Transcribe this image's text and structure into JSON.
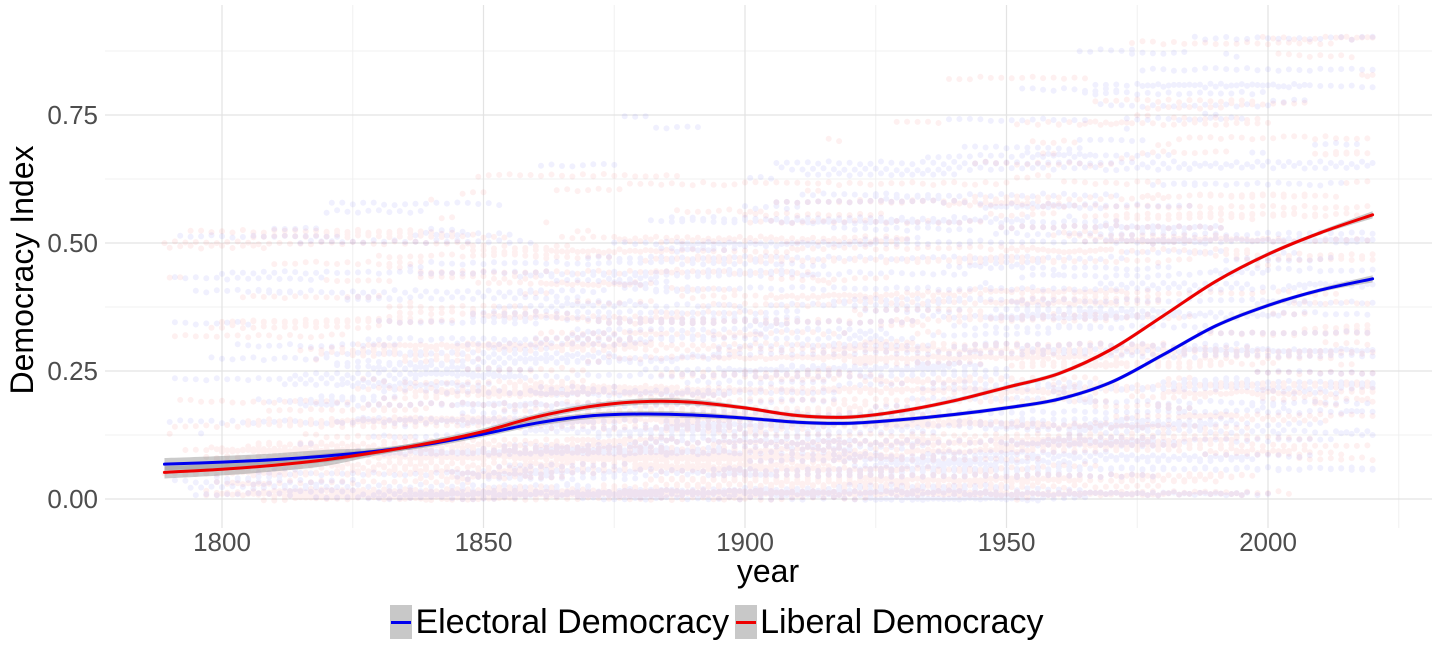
{
  "chart_data": {
    "type": "line",
    "xlabel": "year",
    "ylabel": "Democracy Index",
    "xlim": [
      1780,
      2033
    ],
    "ylim": [
      -0.0008,
      0.9
    ],
    "x_ticks": [
      1800,
      1850,
      1900,
      1950,
      2000
    ],
    "x_tick_labels": [
      "1800",
      "1850",
      "1900",
      "1950",
      "2000"
    ],
    "y_ticks": [
      0.0,
      0.25,
      0.5,
      0.75
    ],
    "y_tick_labels": [
      "0.00",
      "0.25",
      "0.50",
      "0.75"
    ],
    "grid": true,
    "legend_position": "bottom",
    "background_points": "semi-transparent country-year observations for both indices, 1789–2020",
    "series": [
      {
        "name": "Electoral Democracy",
        "color": "#0000ee",
        "x": [
          1789,
          1800,
          1810,
          1820,
          1830,
          1840,
          1850,
          1860,
          1870,
          1880,
          1890,
          1900,
          1910,
          1920,
          1930,
          1940,
          1950,
          1960,
          1970,
          1980,
          1990,
          2000,
          2010,
          2020
        ],
        "y": [
          0.068,
          0.072,
          0.077,
          0.084,
          0.094,
          0.108,
          0.127,
          0.148,
          0.162,
          0.166,
          0.164,
          0.158,
          0.15,
          0.148,
          0.155,
          0.165,
          0.178,
          0.195,
          0.228,
          0.282,
          0.338,
          0.378,
          0.408,
          0.43
        ]
      },
      {
        "name": "Liberal Democracy",
        "color": "#ee0000",
        "x": [
          1789,
          1800,
          1810,
          1820,
          1830,
          1840,
          1850,
          1860,
          1870,
          1880,
          1890,
          1900,
          1910,
          1920,
          1930,
          1940,
          1950,
          1960,
          1970,
          1980,
          1990,
          2000,
          2010,
          2020
        ],
        "y": [
          0.052,
          0.058,
          0.066,
          0.077,
          0.092,
          0.11,
          0.132,
          0.16,
          0.18,
          0.19,
          0.189,
          0.178,
          0.163,
          0.16,
          0.172,
          0.192,
          0.218,
          0.245,
          0.292,
          0.358,
          0.425,
          0.478,
          0.52,
          0.555
        ]
      }
    ]
  },
  "legend": {
    "items": [
      {
        "label": "Electoral Democracy",
        "color": "#0000ee"
      },
      {
        "label": "Liberal Democracy",
        "color": "#ee0000"
      }
    ]
  }
}
